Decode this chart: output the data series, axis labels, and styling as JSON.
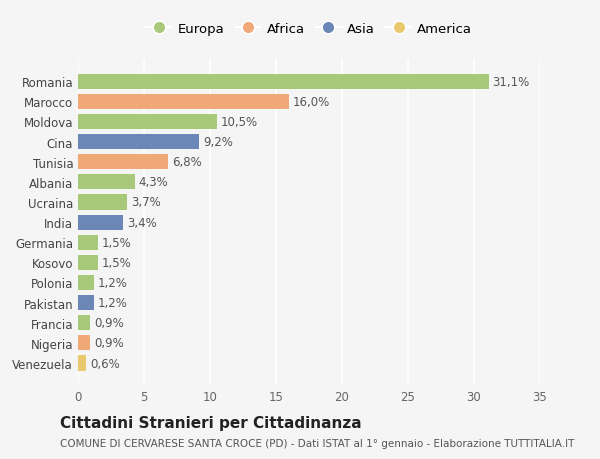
{
  "categories": [
    "Venezuela",
    "Nigeria",
    "Francia",
    "Pakistan",
    "Polonia",
    "Kosovo",
    "Germania",
    "India",
    "Ucraina",
    "Albania",
    "Tunisia",
    "Cina",
    "Moldova",
    "Marocco",
    "Romania"
  ],
  "values": [
    0.6,
    0.9,
    0.9,
    1.2,
    1.2,
    1.5,
    1.5,
    3.4,
    3.7,
    4.3,
    6.8,
    9.2,
    10.5,
    16.0,
    31.1
  ],
  "labels": [
    "0,6%",
    "0,9%",
    "0,9%",
    "1,2%",
    "1,2%",
    "1,5%",
    "1,5%",
    "3,4%",
    "3,7%",
    "4,3%",
    "6,8%",
    "9,2%",
    "10,5%",
    "16,0%",
    "31,1%"
  ],
  "colors": [
    "#e8c96e",
    "#f0a878",
    "#a8c87a",
    "#6b87b8",
    "#a8c87a",
    "#a8c87a",
    "#a8c87a",
    "#6b87b8",
    "#a8c87a",
    "#a8c87a",
    "#f0a878",
    "#6b87b8",
    "#a8c87a",
    "#f0a878",
    "#a8c87a"
  ],
  "legend": [
    {
      "label": "Europa",
      "color": "#a8c87a"
    },
    {
      "label": "Africa",
      "color": "#f0a878"
    },
    {
      "label": "Asia",
      "color": "#6b87b8"
    },
    {
      "label": "America",
      "color": "#e8c96e"
    }
  ],
  "title": "Cittadini Stranieri per Cittadinanza",
  "subtitle": "COMUNE DI CERVARESE SANTA CROCE (PD) - Dati ISTAT al 1° gennaio - Elaborazione TUTTITALIA.IT",
  "xlim": [
    0,
    35
  ],
  "xticks": [
    0,
    5,
    10,
    15,
    20,
    25,
    30,
    35
  ],
  "background_color": "#f5f5f5",
  "grid_color": "#ffffff",
  "bar_height": 0.75,
  "title_fontsize": 11,
  "subtitle_fontsize": 7.5,
  "tick_fontsize": 8.5,
  "label_fontsize": 8.5,
  "legend_fontsize": 9.5
}
